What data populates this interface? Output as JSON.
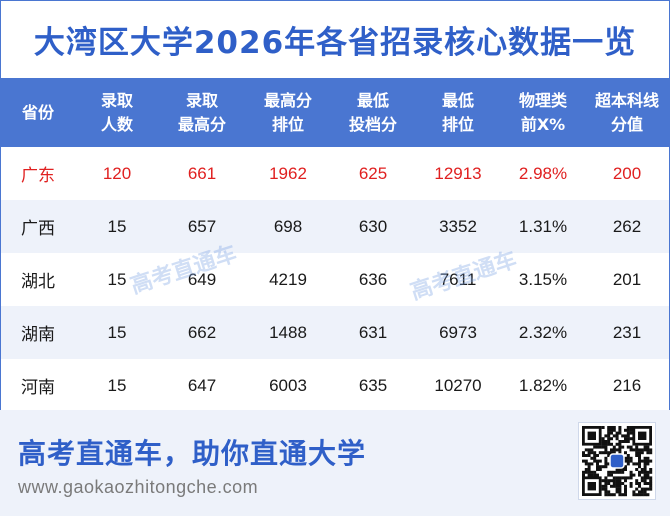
{
  "title": "大湾区大学2026年各省招录核心数据一览",
  "table": {
    "headers": [
      [
        "省份"
      ],
      [
        "录取",
        "人数"
      ],
      [
        "录取",
        "最高分"
      ],
      [
        "最高分",
        "排位"
      ],
      [
        "最低",
        "投档分"
      ],
      [
        "最低",
        "排位"
      ],
      [
        "物理类",
        "前X%"
      ],
      [
        "超本科线",
        "分值"
      ]
    ],
    "rows": [
      [
        "广东",
        "120",
        "661",
        "1962",
        "625",
        "12913",
        "2.98%",
        "200"
      ],
      [
        "广西",
        "15",
        "657",
        "698",
        "630",
        "3352",
        "1.31%",
        "262"
      ],
      [
        "湖北",
        "15",
        "649",
        "4219",
        "636",
        "7611",
        "3.15%",
        "201"
      ],
      [
        "湖南",
        "15",
        "662",
        "1488",
        "631",
        "6973",
        "2.32%",
        "231"
      ],
      [
        "河南",
        "15",
        "647",
        "6003",
        "635",
        "10270",
        "1.82%",
        "216"
      ]
    ],
    "highlight_row": 0
  },
  "watermark": "高考直通车",
  "footer": {
    "slogan": "高考直通车，助你直通大学",
    "url": "www.gaokaozhitongche.com",
    "qr_icon": "qr-code-icon"
  },
  "colors": {
    "brand_blue": "#2f5fc8",
    "header_bg": "#4a76d1",
    "highlight_red": "#e02020",
    "alt_row_bg": "#eef2fa"
  }
}
